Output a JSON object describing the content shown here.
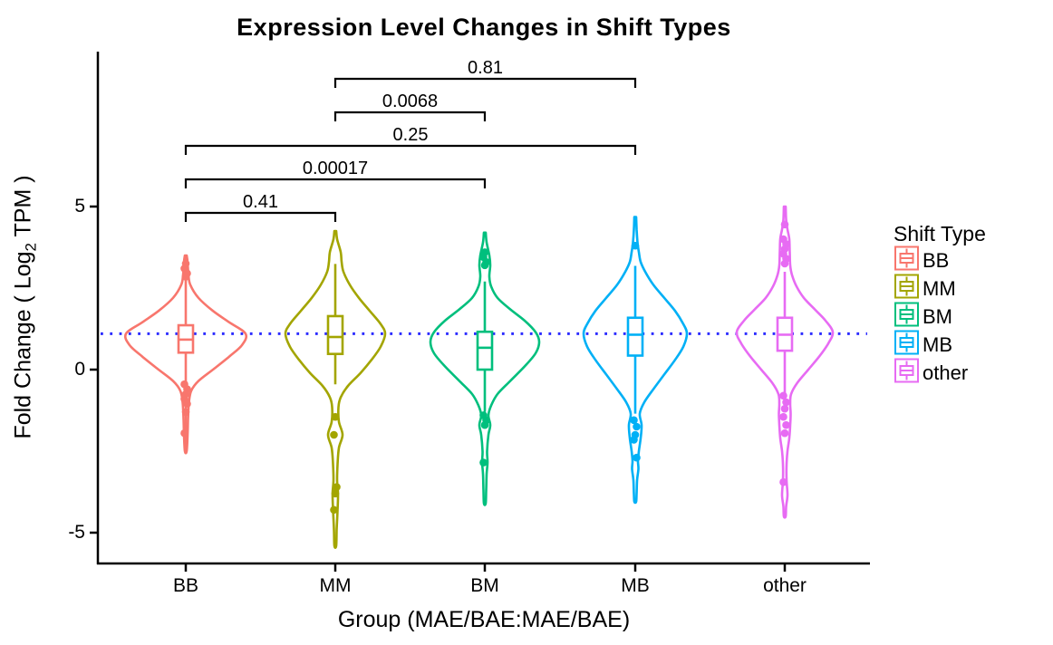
{
  "title": "Expression Level Changes in Shift Types",
  "chart_data": {
    "type": "violin",
    "title": "Expression Level Changes in Shift Types",
    "xlabel": "Group (MAE/BAE:MAE/BAE)",
    "ylabel": {
      "prefix": "Fold Change ( Log",
      "sub": "2",
      "suffix": " TPM )"
    },
    "yticks": [
      5,
      0,
      -5
    ],
    "ylim": [
      -6.0,
      9.8
    ],
    "grid": false,
    "legend_position": "right",
    "reference_line": {
      "y": 1.1,
      "color": "#2B2BFF",
      "style": "dotted"
    },
    "categories": [
      "BB",
      "MM",
      "BM",
      "MB",
      "other"
    ],
    "legend": {
      "title": "Shift Type",
      "entries": [
        {
          "label": "BB",
          "color": "#F8766D"
        },
        {
          "label": "MM",
          "color": "#A3A500"
        },
        {
          "label": "BM",
          "color": "#00BF7D"
        },
        {
          "label": "MB",
          "color": "#00B0F6"
        },
        {
          "label": "other",
          "color": "#E76BF3"
        }
      ]
    },
    "groups": [
      {
        "name": "BB",
        "color": "#F8766D",
        "box": {
          "q1": 0.52,
          "median": 0.92,
          "q3": 1.36
        },
        "whisker_low": -2.5,
        "whisker_high": 3.45,
        "outliers": [
          3.25,
          3.1,
          2.95,
          2.85,
          -0.45,
          -0.6,
          -0.75,
          -0.9,
          -1.05,
          -1.3,
          -1.95
        ],
        "violin_profile": [
          [
            3.5,
            1
          ],
          [
            3.3,
            2
          ],
          [
            2.9,
            3
          ],
          [
            2.6,
            5
          ],
          [
            2.2,
            14
          ],
          [
            1.8,
            30
          ],
          [
            1.45,
            48
          ],
          [
            1.1,
            66
          ],
          [
            0.75,
            62
          ],
          [
            0.4,
            48
          ],
          [
            0.0,
            30
          ],
          [
            -0.35,
            14
          ],
          [
            -0.65,
            6
          ],
          [
            -1.0,
            3.5
          ],
          [
            -1.5,
            2.5
          ],
          [
            -2.0,
            2
          ],
          [
            -2.5,
            1
          ]
        ]
      },
      {
        "name": "MM",
        "color": "#A3A500",
        "box": {
          "q1": 0.48,
          "median": 1.0,
          "q3": 1.64
        },
        "whisker_low": -0.45,
        "whisker_high": 3.24,
        "outliers": [
          -1.45,
          -2.0,
          -3.6,
          -3.8,
          -4.3
        ],
        "violin_profile": [
          [
            4.25,
            1
          ],
          [
            4.0,
            2
          ],
          [
            3.6,
            6
          ],
          [
            3.3,
            7
          ],
          [
            3.0,
            9
          ],
          [
            2.6,
            16
          ],
          [
            2.2,
            26
          ],
          [
            1.8,
            38
          ],
          [
            1.4,
            50
          ],
          [
            1.1,
            55
          ],
          [
            0.7,
            50
          ],
          [
            0.3,
            40
          ],
          [
            -0.1,
            28
          ],
          [
            -0.5,
            14
          ],
          [
            -0.85,
            6
          ],
          [
            -1.15,
            3.5
          ],
          [
            -1.6,
            4
          ],
          [
            -2.0,
            8
          ],
          [
            -2.4,
            4
          ],
          [
            -2.9,
            2.5
          ],
          [
            -3.4,
            2
          ],
          [
            -3.8,
            3
          ],
          [
            -4.3,
            2.5
          ],
          [
            -4.9,
            1.5
          ],
          [
            -5.4,
            1
          ]
        ]
      },
      {
        "name": "BM",
        "color": "#00BF7D",
        "box": {
          "q1": 0.0,
          "median": 0.67,
          "q3": 1.16
        },
        "whisker_low": -1.3,
        "whisker_high": 2.7,
        "outliers": [
          3.6,
          3.45,
          3.3,
          3.2,
          -1.4,
          -1.55,
          -1.7,
          -2.85
        ],
        "violin_profile": [
          [
            4.2,
            1
          ],
          [
            3.9,
            2
          ],
          [
            3.5,
            5
          ],
          [
            3.2,
            6
          ],
          [
            2.85,
            5
          ],
          [
            2.55,
            7
          ],
          [
            2.2,
            14
          ],
          [
            1.85,
            28
          ],
          [
            1.5,
            44
          ],
          [
            1.15,
            56
          ],
          [
            0.85,
            60
          ],
          [
            0.5,
            56
          ],
          [
            0.1,
            44
          ],
          [
            -0.35,
            28
          ],
          [
            -0.75,
            14
          ],
          [
            -1.1,
            7
          ],
          [
            -1.4,
            4
          ],
          [
            -1.7,
            6
          ],
          [
            -2.0,
            4
          ],
          [
            -2.5,
            2.5
          ],
          [
            -2.85,
            3
          ],
          [
            -3.2,
            2
          ],
          [
            -3.7,
            1.5
          ],
          [
            -4.1,
            1
          ]
        ]
      },
      {
        "name": "MB",
        "color": "#00B0F6",
        "box": {
          "q1": 0.43,
          "median": 1.07,
          "q3": 1.59
        },
        "whisker_low": -1.35,
        "whisker_high": 3.18,
        "outliers": [
          3.8,
          -1.55,
          -1.75,
          -2.0,
          -2.15,
          -2.7
        ],
        "violin_profile": [
          [
            4.68,
            1
          ],
          [
            4.3,
            1.5
          ],
          [
            3.9,
            2.5
          ],
          [
            3.6,
            4
          ],
          [
            3.3,
            6
          ],
          [
            3.0,
            11
          ],
          [
            2.6,
            20
          ],
          [
            2.2,
            32
          ],
          [
            1.8,
            44
          ],
          [
            1.4,
            53
          ],
          [
            1.1,
            57
          ],
          [
            0.7,
            53
          ],
          [
            0.3,
            44
          ],
          [
            -0.15,
            32
          ],
          [
            -0.6,
            20
          ],
          [
            -1.0,
            10
          ],
          [
            -1.35,
            5
          ],
          [
            -1.7,
            7
          ],
          [
            -2.1,
            6
          ],
          [
            -2.5,
            4
          ],
          [
            -2.8,
            3
          ],
          [
            -3.05,
            3.5
          ],
          [
            -3.4,
            2
          ],
          [
            -3.8,
            1.5
          ],
          [
            -4.05,
            1
          ]
        ]
      },
      {
        "name": "other",
        "color": "#E76BF3",
        "box": {
          "q1": 0.58,
          "median": 1.07,
          "q3": 1.59
        },
        "whisker_low": -0.85,
        "whisker_high": 3.0,
        "outliers": [
          4.45,
          4.0,
          3.85,
          3.7,
          3.55,
          3.4,
          3.25,
          -0.8,
          -1.0,
          -1.2,
          -1.45,
          -1.7,
          -1.95,
          -3.45
        ],
        "violin_profile": [
          [
            5.0,
            1
          ],
          [
            4.6,
            1.5
          ],
          [
            4.3,
            3
          ],
          [
            4.0,
            5
          ],
          [
            3.6,
            5.5
          ],
          [
            3.2,
            6
          ],
          [
            2.9,
            8
          ],
          [
            2.55,
            13
          ],
          [
            2.2,
            21
          ],
          [
            1.85,
            33
          ],
          [
            1.5,
            45
          ],
          [
            1.15,
            53
          ],
          [
            0.8,
            48
          ],
          [
            0.4,
            38
          ],
          [
            0.0,
            26
          ],
          [
            -0.4,
            14
          ],
          [
            -0.75,
            7
          ],
          [
            -1.05,
            6
          ],
          [
            -1.35,
            6.5
          ],
          [
            -1.7,
            6
          ],
          [
            -2.1,
            5
          ],
          [
            -2.5,
            3
          ],
          [
            -2.9,
            2
          ],
          [
            -3.4,
            2
          ],
          [
            -3.85,
            3
          ],
          [
            -4.2,
            1.5
          ],
          [
            -4.5,
            1
          ]
        ]
      }
    ],
    "comparisons": [
      {
        "group1": "BB",
        "group2": "MM",
        "p_value": "0.41",
        "row": 0
      },
      {
        "group1": "BB",
        "group2": "BM",
        "p_value": "0.00017",
        "row": 1
      },
      {
        "group1": "BB",
        "group2": "MB",
        "p_value": "0.25",
        "row": 2
      },
      {
        "group1": "MM",
        "group2": "BM",
        "p_value": "0.0068",
        "row": 3
      },
      {
        "group1": "MM",
        "group2": "MB",
        "p_value": "0.81",
        "row": 4
      }
    ]
  }
}
